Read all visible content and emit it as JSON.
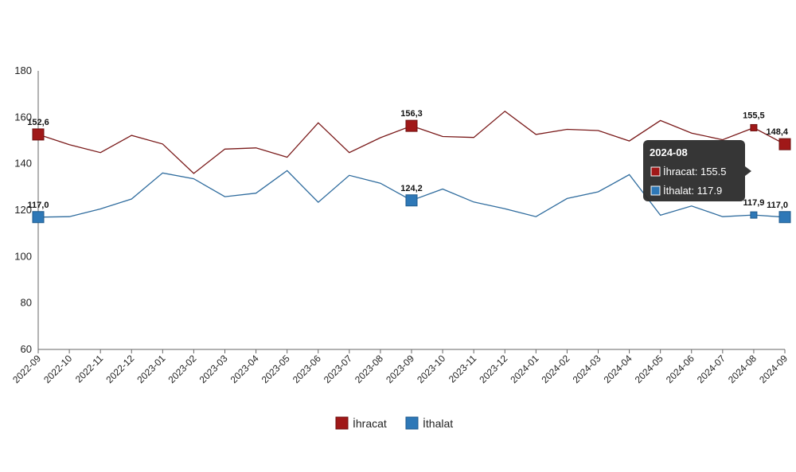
{
  "chart_data": {
    "type": "line",
    "x": [
      "2022-09",
      "2022-10",
      "2022-11",
      "2022-12",
      "2023-01",
      "2023-02",
      "2023-03",
      "2023-04",
      "2023-05",
      "2023-06",
      "2023-07",
      "2023-08",
      "2023-09",
      "2023-10",
      "2023-11",
      "2023-12",
      "2024-01",
      "2024-02",
      "2024-03",
      "2024-04",
      "2024-05",
      "2024-06",
      "2024-07",
      "2024-08",
      "2024-09"
    ],
    "ylim": [
      60,
      180
    ],
    "yticks": [
      "60",
      "80",
      "100",
      "120",
      "140",
      "160",
      "180"
    ],
    "grid": false,
    "legend_position": "bottom",
    "series": [
      {
        "name": "İhracat",
        "color": "#a01818",
        "values": [
          152.6,
          148.2,
          144.8,
          152.2,
          148.5,
          135.8,
          146.3,
          146.8,
          142.8,
          157.6,
          144.8,
          151.2,
          156.3,
          151.7,
          151.3,
          162.6,
          152.6,
          154.8,
          154.3,
          149.8,
          158.6,
          153.2,
          150.3,
          155.5,
          148.4
        ]
      },
      {
        "name": "İthalat",
        "color": "#2e78b7",
        "values": [
          117.0,
          117.2,
          120.5,
          124.8,
          136.0,
          133.5,
          125.8,
          127.3,
          137.0,
          123.4,
          135.0,
          131.6,
          124.2,
          129.1,
          123.5,
          120.6,
          117.2,
          125.0,
          127.9,
          135.3,
          117.8,
          121.8,
          117.2,
          117.9,
          117.0
        ]
      }
    ],
    "data_labels": [
      {
        "series": 0,
        "index": 0,
        "text": "152,6"
      },
      {
        "series": 0,
        "index": 12,
        "text": "156,3"
      },
      {
        "series": 0,
        "index": 23,
        "text": "155,5"
      },
      {
        "series": 0,
        "index": 24,
        "text": "148,4"
      },
      {
        "series": 1,
        "index": 0,
        "text": "117,0"
      },
      {
        "series": 1,
        "index": 12,
        "text": "124,2"
      },
      {
        "series": 1,
        "index": 23,
        "text": "117,9"
      },
      {
        "series": 1,
        "index": 24,
        "text": "117,0"
      }
    ],
    "tooltip": {
      "title": "2024-08",
      "lines": [
        "İhracat: 155.5",
        "İthalat: 117.9"
      ]
    }
  }
}
